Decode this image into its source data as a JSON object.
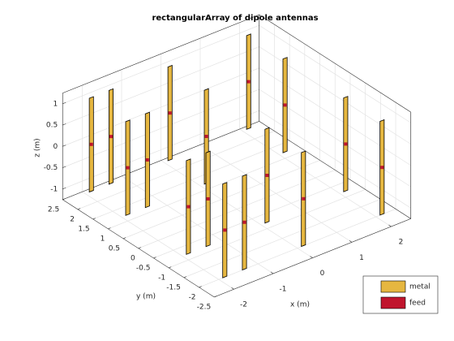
{
  "chart_data": {
    "type": "dipole-array",
    "title": "rectangularArray of dipole antennas",
    "xlabel": "x (m)",
    "ylabel": "y (m)",
    "zlabel": "z (m)",
    "x": [
      -2,
      -1.5,
      0,
      2,
      -2,
      -1.5,
      0,
      2,
      -2,
      -1.5,
      0,
      2,
      -2,
      -1.5,
      0,
      2
    ],
    "y": [
      -2.2,
      -2.2,
      -2.2,
      -2.2,
      -1,
      -1,
      -1,
      -1,
      1,
      1,
      1,
      1,
      2.2,
      2.2,
      2.2,
      2.2
    ],
    "length": 2.2,
    "xlim": [
      -2.5,
      2.5
    ],
    "xticks": [
      -2,
      -1,
      0,
      1,
      2
    ],
    "ylim": [
      -2.5,
      2.5
    ],
    "yticks": [
      -2.5,
      -2,
      -1.5,
      -1,
      -0.5,
      0,
      0.5,
      1,
      1.5,
      2,
      2.5
    ],
    "zlim": [
      -1.25,
      1.25
    ],
    "zticks": [
      -1,
      -0.5,
      0,
      0.5,
      1
    ],
    "grid": true,
    "legend": "bottom-right",
    "series": [
      {
        "name": "metal",
        "color": "#e6b740"
      },
      {
        "name": "feed",
        "color": "#c0152d"
      }
    ]
  }
}
